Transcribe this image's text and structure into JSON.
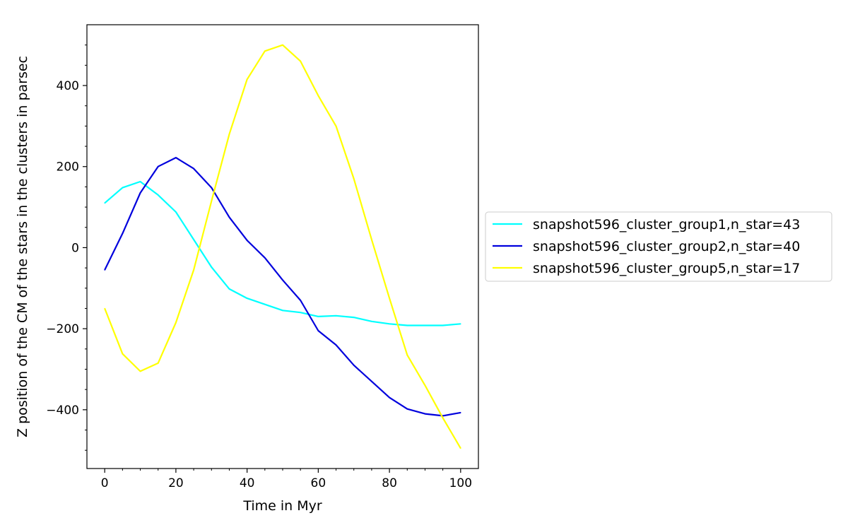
{
  "chart_data": {
    "type": "line",
    "title": "",
    "xlabel": "Time in Myr",
    "ylabel": "Z position of the CM of the stars in the clusters in parsec",
    "xlim": [
      -5,
      105
    ],
    "ylim": [
      -545,
      550
    ],
    "x_ticks": [
      0,
      20,
      40,
      60,
      80,
      100
    ],
    "y_ticks": [
      -400,
      -200,
      0,
      200,
      400
    ],
    "x_tick_labels": [
      "0",
      "20",
      "40",
      "60",
      "80",
      "100"
    ],
    "y_tick_labels": [
      "−400",
      "−200",
      "0",
      "200",
      "400"
    ],
    "grid": false,
    "legend_position": "outside-right",
    "x": [
      0,
      5,
      10,
      15,
      20,
      25,
      30,
      35,
      40,
      45,
      50,
      55,
      60,
      65,
      70,
      75,
      80,
      85,
      90,
      95,
      100
    ],
    "series": [
      {
        "name": "snapshot596_cluster_group1,n_star=43",
        "color": "#00ffff",
        "values": [
          110,
          148,
          163,
          130,
          88,
          20,
          -48,
          -102,
          -125,
          -140,
          -155,
          -160,
          -170,
          -168,
          -172,
          -182,
          -188,
          -192,
          -192,
          -192,
          -188
        ]
      },
      {
        "name": "snapshot596_cluster_group2,n_star=40",
        "color": "#0000dd",
        "values": [
          -55,
          35,
          135,
          200,
          222,
          195,
          148,
          75,
          18,
          -25,
          -80,
          -130,
          -205,
          -240,
          -290,
          -330,
          -370,
          -398,
          -410,
          -415,
          -407
        ]
      },
      {
        "name": "snapshot596_cluster_group5,n_star=17",
        "color": "#ffff00",
        "values": [
          -150,
          -262,
          -305,
          -285,
          -185,
          -55,
          115,
          280,
          415,
          485,
          500,
          460,
          375,
          300,
          170,
          20,
          -125,
          -265,
          -340,
          -420,
          -495
        ]
      }
    ]
  }
}
